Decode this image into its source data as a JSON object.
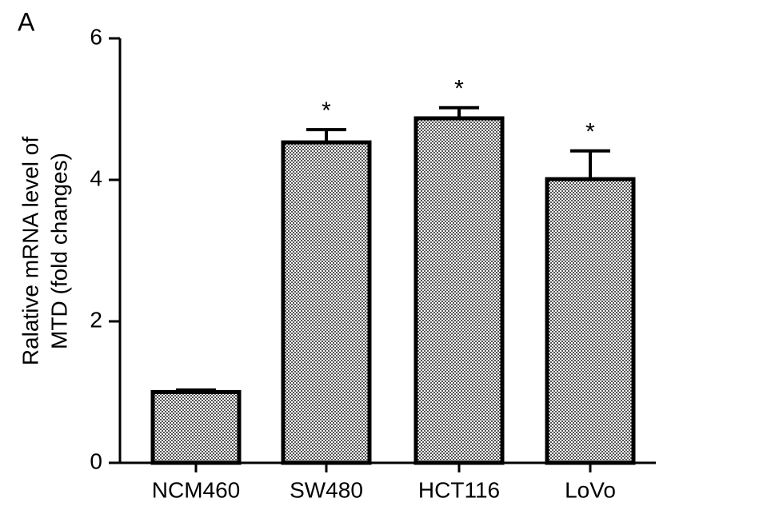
{
  "chart_data": {
    "type": "bar",
    "panel_label": "A",
    "y_label": [
      "Ralative mRNA level of",
      "MTD (fold changes)"
    ],
    "categories": [
      "NCM460",
      "SW480",
      "HCT116",
      "LoVo"
    ],
    "values": [
      1.0,
      4.53,
      4.87,
      4.01
    ],
    "errors": [
      0.03,
      0.18,
      0.15,
      0.4
    ],
    "significance": [
      null,
      "*",
      "*",
      "*"
    ],
    "color": "#8a8a8a",
    "ylim": [
      0,
      6
    ],
    "yticks": [
      0,
      2,
      4,
      6
    ],
    "grid": false
  }
}
